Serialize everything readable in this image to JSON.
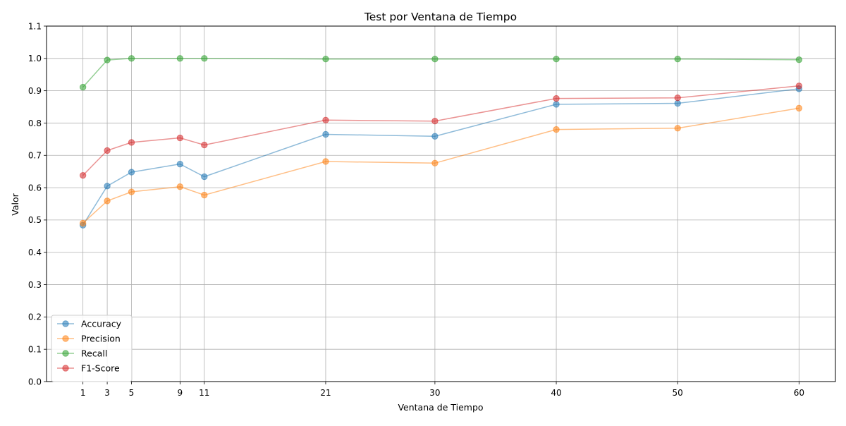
{
  "chart_data": {
    "type": "line",
    "title": "Test por Ventana de Tiempo",
    "xlabel": "Ventana de Tiempo",
    "ylabel": "Valor",
    "x": [
      1,
      3,
      5,
      9,
      11,
      21,
      30,
      40,
      50,
      60
    ],
    "x_tick_labels": [
      "1",
      "3",
      "5",
      "9",
      "11",
      "21",
      "30",
      "40",
      "50",
      "60"
    ],
    "xlim": [
      -2,
      63
    ],
    "ylim": [
      0.0,
      1.1
    ],
    "y_ticks": [
      0.0,
      0.1,
      0.2,
      0.3,
      0.4,
      0.5,
      0.6,
      0.7,
      0.8,
      0.9,
      1.0,
      1.1
    ],
    "y_tick_labels": [
      "0.0",
      "0.1",
      "0.2",
      "0.3",
      "0.4",
      "0.5",
      "0.6",
      "0.7",
      "0.8",
      "0.9",
      "1.0",
      "1.1"
    ],
    "grid": true,
    "legend_position": "bottom-left",
    "series": [
      {
        "name": "Accuracy",
        "color": "#1f77b4",
        "values": [
          0.484,
          0.605,
          0.648,
          0.673,
          0.634,
          0.765,
          0.759,
          0.858,
          0.861,
          0.906
        ]
      },
      {
        "name": "Precision",
        "color": "#ff7f0e",
        "values": [
          0.49,
          0.559,
          0.587,
          0.603,
          0.577,
          0.681,
          0.676,
          0.78,
          0.784,
          0.846
        ]
      },
      {
        "name": "Recall",
        "color": "#2ca02c",
        "values": [
          0.911,
          0.995,
          1.0,
          1.0,
          1.0,
          0.998,
          0.998,
          0.998,
          0.998,
          0.996
        ]
      },
      {
        "name": "F1-Score",
        "color": "#d62728",
        "values": [
          0.638,
          0.715,
          0.74,
          0.754,
          0.732,
          0.809,
          0.806,
          0.876,
          0.878,
          0.915
        ]
      }
    ]
  }
}
